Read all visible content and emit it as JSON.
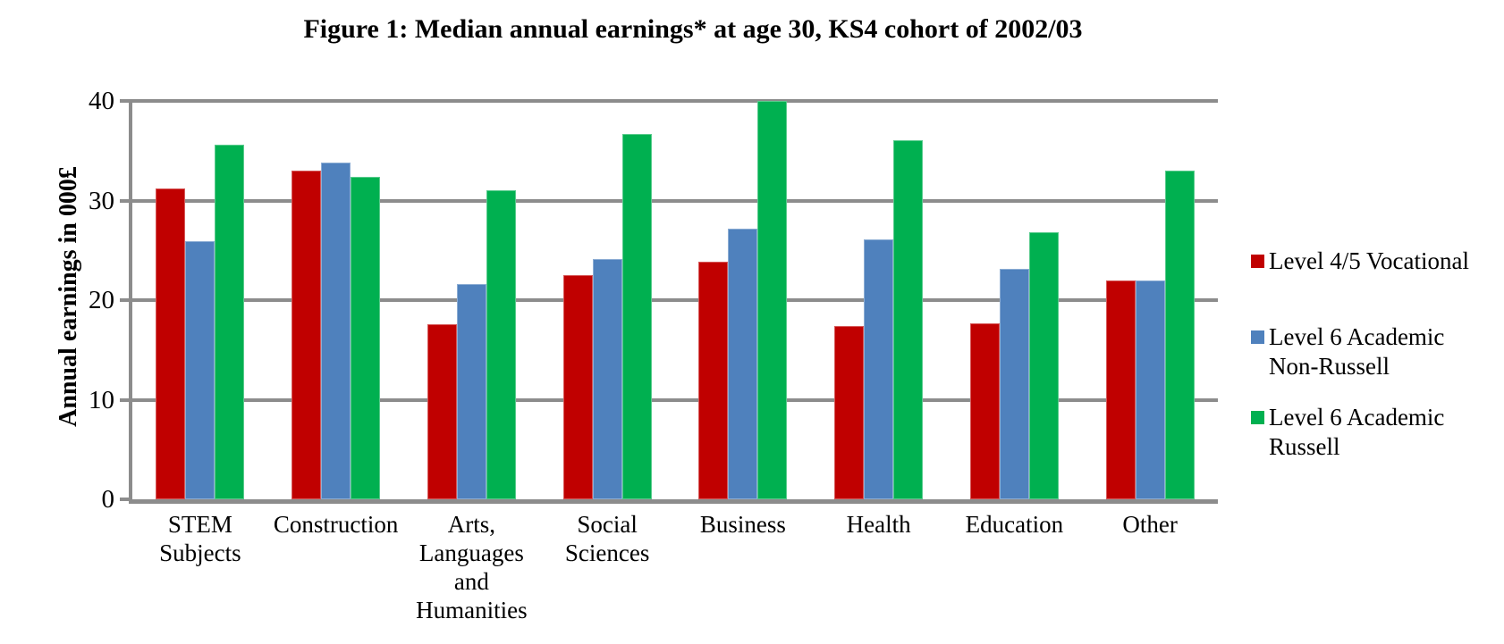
{
  "chart_data": {
    "type": "bar",
    "title": "Figure 1: Median annual earnings* at age 30, KS4 cohort of 2002/03",
    "ylabel": "Annual earnings in 000£",
    "xlabel": "",
    "ylim": [
      0,
      40
    ],
    "yticks": [
      0,
      10,
      20,
      30,
      40
    ],
    "grid": true,
    "grid_color": "#8C8C8C",
    "legend_position": "right",
    "categories": [
      "STEM\nSubjects",
      "Construction",
      "Arts,\nLanguages and\nHumanities",
      "Social\nSciences",
      "Business",
      "Health",
      "Education",
      "Other"
    ],
    "series": [
      {
        "name": "Level 4/5 Vocational",
        "color": "#C00000",
        "values": [
          31.2,
          33.0,
          17.6,
          22.5,
          23.9,
          17.4,
          17.7,
          22.0
        ]
      },
      {
        "name": "Level 6 Academic\nNon-Russell",
        "color": "#4F81BD",
        "values": [
          25.9,
          33.8,
          21.6,
          24.1,
          27.2,
          26.1,
          23.1,
          22.0
        ]
      },
      {
        "name": "Level 6 Academic\nRussell",
        "color": "#00B050",
        "values": [
          35.6,
          32.4,
          31.0,
          36.7,
          40.0,
          36.1,
          26.8,
          33.0
        ]
      }
    ]
  }
}
